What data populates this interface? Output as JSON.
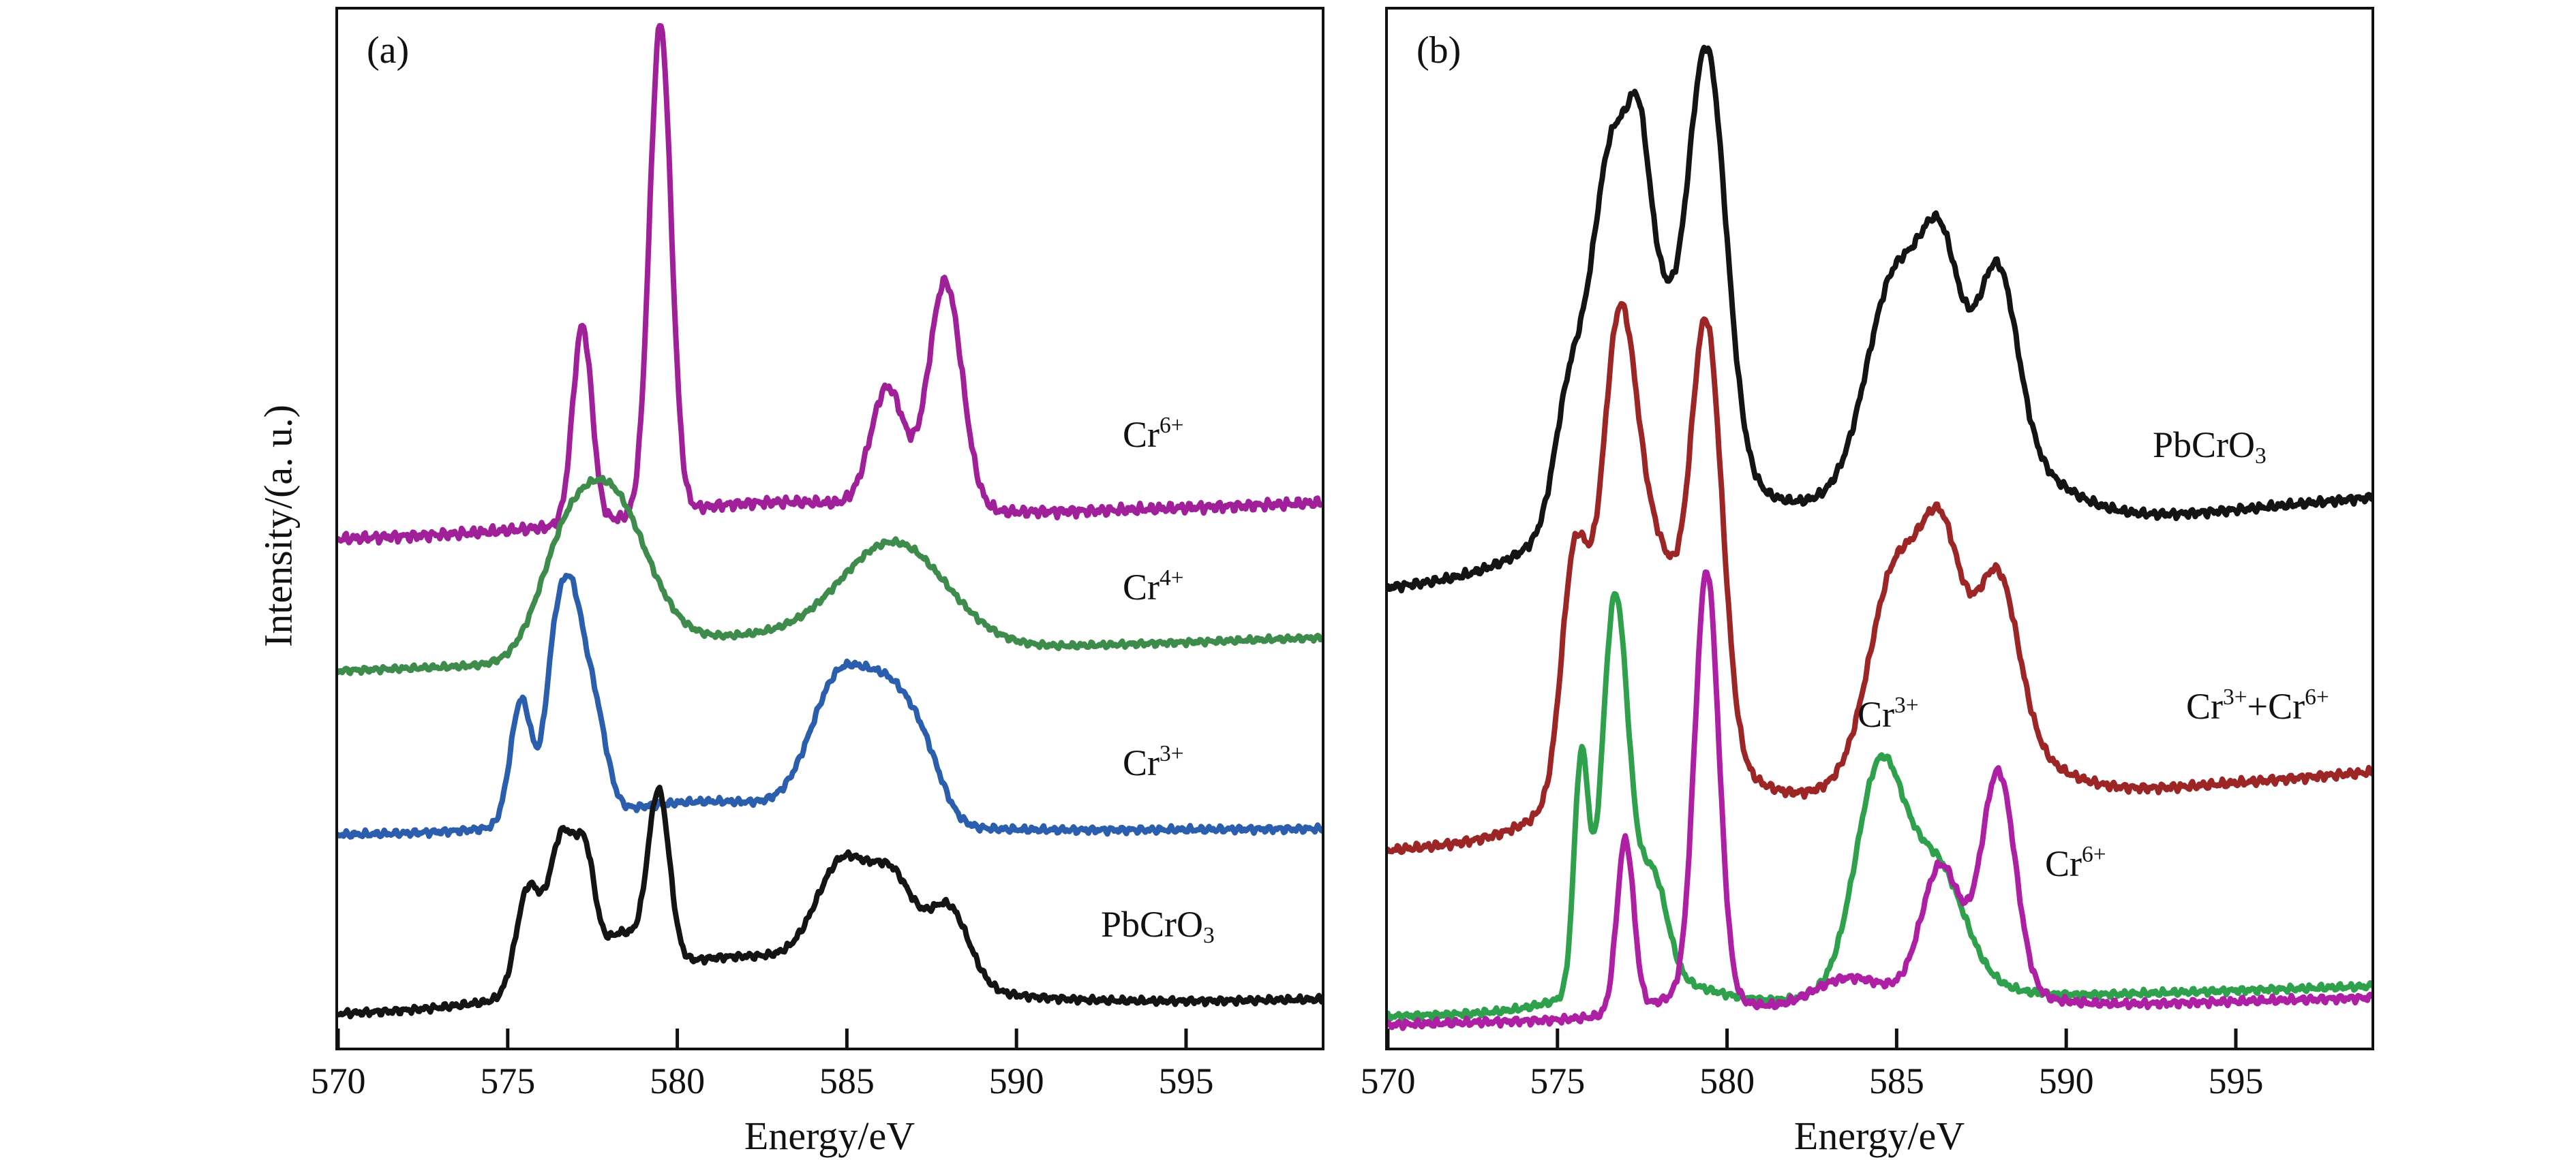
{
  "figure_title": "",
  "chart_data": [
    {
      "type": "line",
      "panel_label": "(a)",
      "xlabel": "Energy/eV",
      "ylabel": "Intensity/(a. u.)",
      "x_range": [
        570,
        599
      ],
      "x_ticks": [
        570,
        575,
        580,
        585,
        590,
        595
      ],
      "x_unit": "eV",
      "y_axis": "arbitrary units, curves vertically offset",
      "peak_format": "[center_eV, width_eV, height_fraction_of_plot]",
      "series": [
        {
          "name": "Cr6plus",
          "label_parts": [
            {
              "t": "Cr"
            },
            {
              "sup": "6+"
            }
          ],
          "color": "#a02099",
          "baseline": 0.49,
          "slope": 0.0012,
          "noise": 0.006,
          "peaks": [
            [
              577.2,
              0.4,
              0.19
            ],
            [
              579.5,
              0.45,
              0.47
            ],
            [
              582.5,
              5.0,
              0.02
            ],
            [
              586.2,
              0.7,
              0.115
            ],
            [
              587.9,
              0.7,
              0.22
            ]
          ],
          "label_pos": [
            1151,
            597
          ]
        },
        {
          "name": "Cr4plus",
          "label_parts": [
            {
              "t": "Cr"
            },
            {
              "sup": "4+"
            }
          ],
          "color": "#3e8c4b",
          "baseline": 0.363,
          "slope": 0.0011,
          "noise": 0.0035,
          "peaks": [
            [
              576.5,
              1.0,
              0.05
            ],
            [
              577.9,
              1.6,
              0.16
            ],
            [
              582.0,
              4.0,
              0.02
            ],
            [
              586.4,
              2.2,
              0.1
            ]
          ],
          "label_pos": [
            1151,
            821
          ]
        },
        {
          "name": "Cr3plus",
          "label_parts": [
            {
              "t": "Cr"
            },
            {
              "sup": "3+"
            }
          ],
          "color": "#2b5fae",
          "baseline": 0.205,
          "slope": 0.0002,
          "noise": 0.004,
          "peaks": [
            [
              575.4,
              0.45,
              0.12
            ],
            [
              576.3,
              0.35,
              0.06
            ],
            [
              576.8,
              0.6,
              0.22
            ],
            [
              577.6,
              0.5,
              0.08
            ],
            [
              581.0,
              5.0,
              0.03
            ],
            [
              584.8,
              1.2,
              0.13
            ],
            [
              586.3,
              1.0,
              0.1
            ],
            [
              587.3,
              0.8,
              0.05
            ]
          ],
          "label_pos": [
            1151,
            1079
          ]
        },
        {
          "name": "PbCrO3",
          "label_parts": [
            {
              "t": "PbCrO"
            },
            {
              "sub": "3"
            }
          ],
          "color": "#141414",
          "baseline": 0.032,
          "slope": 0.0005,
          "noise": 0.004,
          "peaks": [
            [
              575.6,
              0.5,
              0.1
            ],
            [
              576.6,
              0.55,
              0.145
            ],
            [
              577.3,
              0.4,
              0.1
            ],
            [
              578.3,
              0.8,
              0.04
            ],
            [
              579.45,
              0.45,
              0.165
            ],
            [
              582.0,
              6.0,
              0.05
            ],
            [
              584.9,
              1.1,
              0.1
            ],
            [
              586.4,
              0.9,
              0.085
            ],
            [
              588.0,
              0.85,
              0.075
            ]
          ],
          "label_pos": [
            1119,
            1316
          ]
        }
      ]
    },
    {
      "type": "line",
      "panel_label": "(b)",
      "xlabel": "Energy/eV",
      "ylabel": "",
      "x_range": [
        570,
        599
      ],
      "x_ticks": [
        570,
        575,
        580,
        585,
        590,
        595
      ],
      "x_unit": "eV",
      "y_axis": "arbitrary units, curves vertically offset",
      "peak_format": "[center_eV, width_eV, height_fraction_of_plot]",
      "series": [
        {
          "name": "PbCrO3",
          "label_parts": [
            {
              "t": "PbCrO"
            },
            {
              "sub": "3"
            }
          ],
          "color": "#141414",
          "baseline": 0.443,
          "slope": 0.003,
          "noise": 0.005,
          "peaks": [
            [
              575.3,
              0.6,
              0.1
            ],
            [
              576.6,
              0.9,
              0.32
            ],
            [
              577.4,
              0.4,
              0.09
            ],
            [
              577.8,
              0.8,
              0.15
            ],
            [
              578.2,
              3.5,
              0.1
            ],
            [
              579.4,
              0.8,
              0.4
            ],
            [
              584.9,
              1.1,
              0.16
            ],
            [
              586.3,
              0.8,
              0.15
            ],
            [
              588.0,
              0.8,
              0.16
            ],
            [
              586.5,
              3.2,
              0.12
            ]
          ],
          "label_pos": [
            1122,
            612
          ]
        },
        {
          "name": "Cr3plusCr6plus",
          "label_parts": [
            {
              "t": "Cr"
            },
            {
              "sup": "3+"
            },
            {
              "t": "+Cr"
            },
            {
              "sup": "6+"
            }
          ],
          "color": "#9c2626",
          "baseline": 0.19,
          "slope": 0.0026,
          "noise": 0.005,
          "peaks": [
            [
              575.5,
              0.55,
              0.22
            ],
            [
              576.8,
              0.75,
              0.4
            ],
            [
              578.0,
              0.9,
              0.16
            ],
            [
              578.0,
              3.0,
              0.09
            ],
            [
              579.4,
              0.65,
              0.4
            ],
            [
              584.9,
              1.0,
              0.16
            ],
            [
              586.3,
              0.85,
              0.17
            ],
            [
              588.0,
              0.85,
              0.15
            ],
            [
              586.5,
              3.0,
              0.09
            ]
          ],
          "label_pos": [
            1171,
            996
          ]
        },
        {
          "name": "Cr3plus",
          "label_parts": [
            {
              "t": "Cr"
            },
            {
              "sup": "3+"
            }
          ],
          "color": "#2fa04b",
          "baseline": 0.03,
          "slope": 0.001,
          "noise": 0.004,
          "peaks": [
            [
              575.7,
              0.3,
              0.22
            ],
            [
              576.7,
              0.55,
              0.37
            ],
            [
              577.8,
              0.6,
              0.1
            ],
            [
              577.5,
              2.5,
              0.03
            ],
            [
              584.5,
              1.0,
              0.2
            ],
            [
              586.2,
              1.1,
              0.1
            ],
            [
              585.5,
              2.5,
              0.03
            ]
          ],
          "label_pos": [
            689,
            1008
          ]
        },
        {
          "name": "Cr6plus",
          "label_parts": [
            {
              "t": "Cr"
            },
            {
              "sup": "6+"
            }
          ],
          "color": "#ad1fa3",
          "baseline": 0.022,
          "slope": 0.0009,
          "noise": 0.0045,
          "peaks": [
            [
              577.0,
              0.35,
              0.165
            ],
            [
              579.4,
              0.5,
              0.41
            ],
            [
              579.0,
              2.0,
              0.02
            ],
            [
              583.5,
              1.5,
              0.03
            ],
            [
              586.3,
              0.8,
              0.12
            ],
            [
              588.0,
              0.7,
              0.21
            ],
            [
              587.0,
              2.5,
              0.02
            ]
          ],
          "label_pos": [
            964,
            1227
          ]
        }
      ]
    }
  ]
}
